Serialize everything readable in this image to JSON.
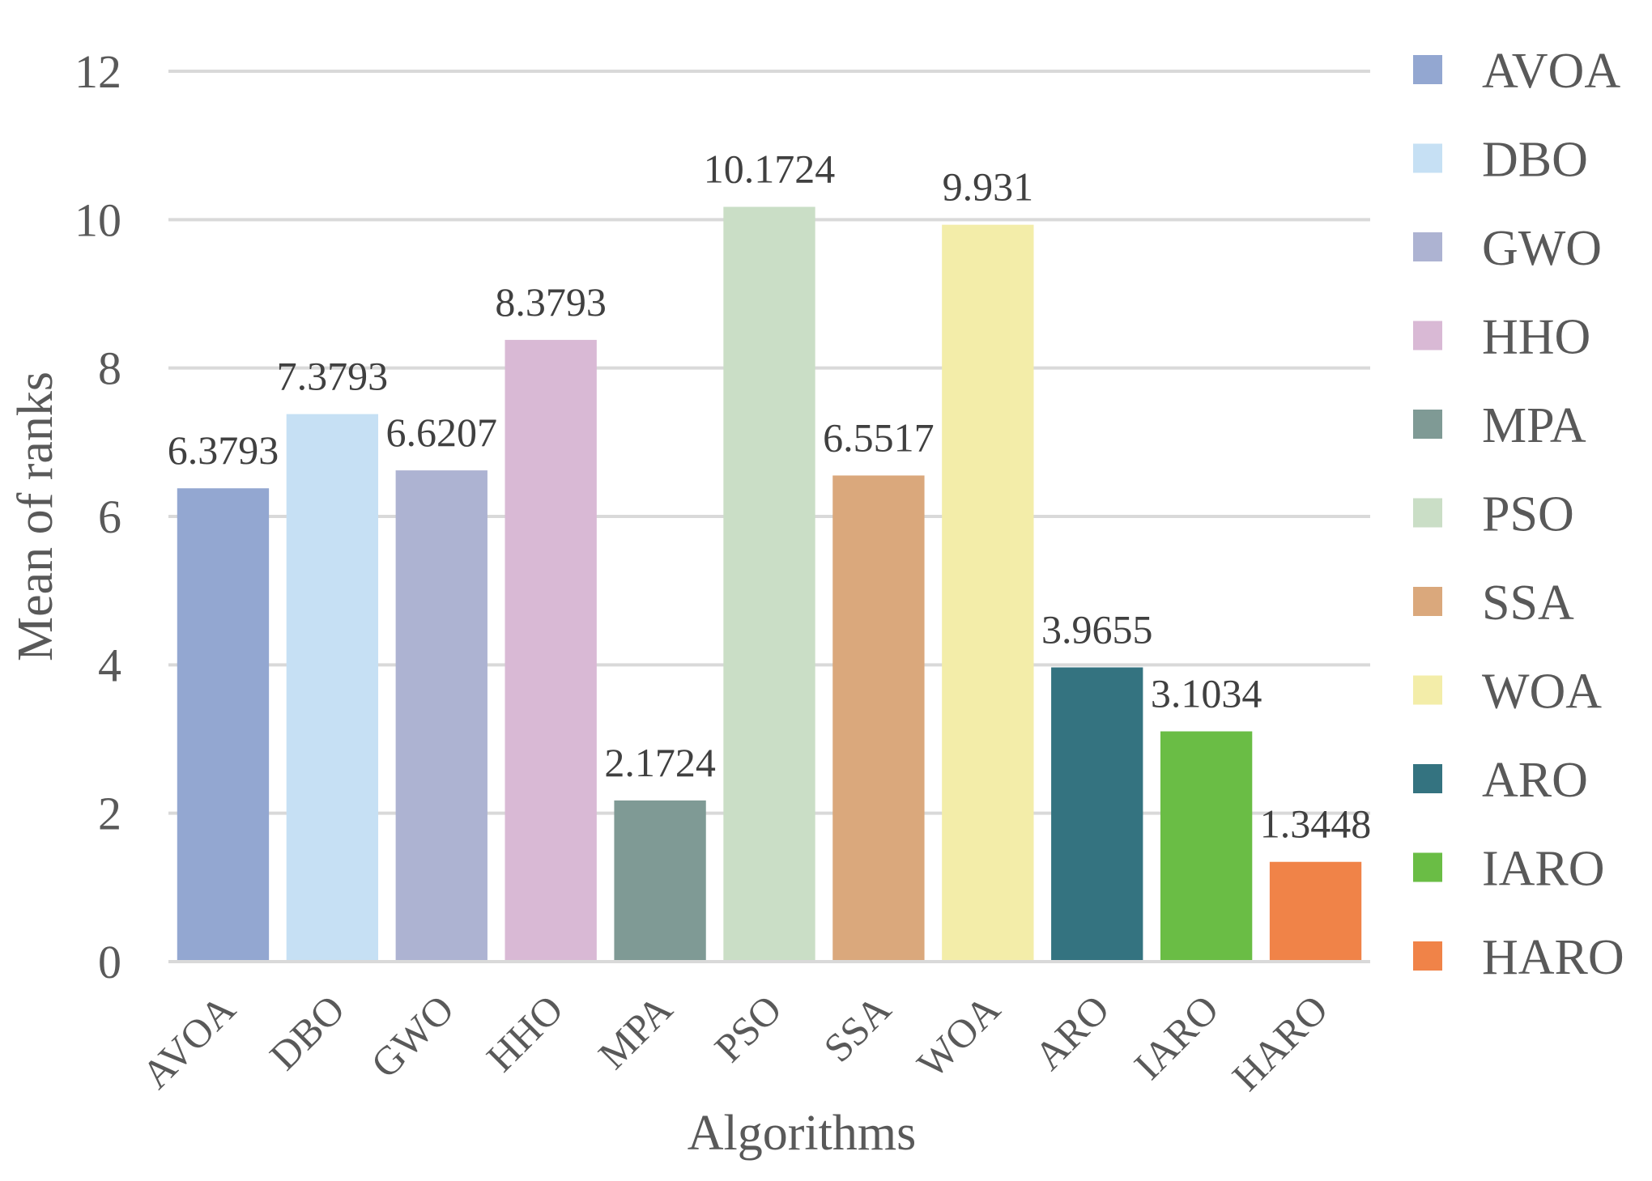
{
  "chart_data": {
    "type": "bar",
    "title": "",
    "xlabel": "Algorithms",
    "ylabel": "Mean of ranks",
    "ylim": [
      0,
      12
    ],
    "yticks": [
      0,
      2,
      4,
      6,
      8,
      10,
      12
    ],
    "grid": true,
    "legend_position": "right",
    "categories": [
      "AVOA",
      "DBO",
      "GWO",
      "HHO",
      "MPA",
      "PSO",
      "SSA",
      "WOA",
      "ARO",
      "IARO",
      "HARO"
    ],
    "values": [
      6.3793,
      7.3793,
      6.6207,
      8.3793,
      2.1724,
      10.1724,
      6.5517,
      9.931,
      3.9655,
      3.1034,
      1.3448
    ],
    "value_labels": [
      "6.3793",
      "7.3793",
      "6.6207",
      "8.3793",
      "2.1724",
      "10.1724",
      "6.5517",
      "9.931",
      "3.9655",
      "3.1034",
      "1.3448"
    ],
    "colors": [
      "#93a7d1",
      "#c6e0f4",
      "#adb3d2",
      "#d9b9d5",
      "#7f9a95",
      "#cadec6",
      "#daa87c",
      "#f3eda9",
      "#347380",
      "#6abd45",
      "#f08348"
    ],
    "legend": [
      "AVOA",
      "DBO",
      "GWO",
      "HHO",
      "MPA",
      "PSO",
      "SSA",
      "WOA",
      "ARO",
      "IARO",
      "HARO"
    ]
  }
}
